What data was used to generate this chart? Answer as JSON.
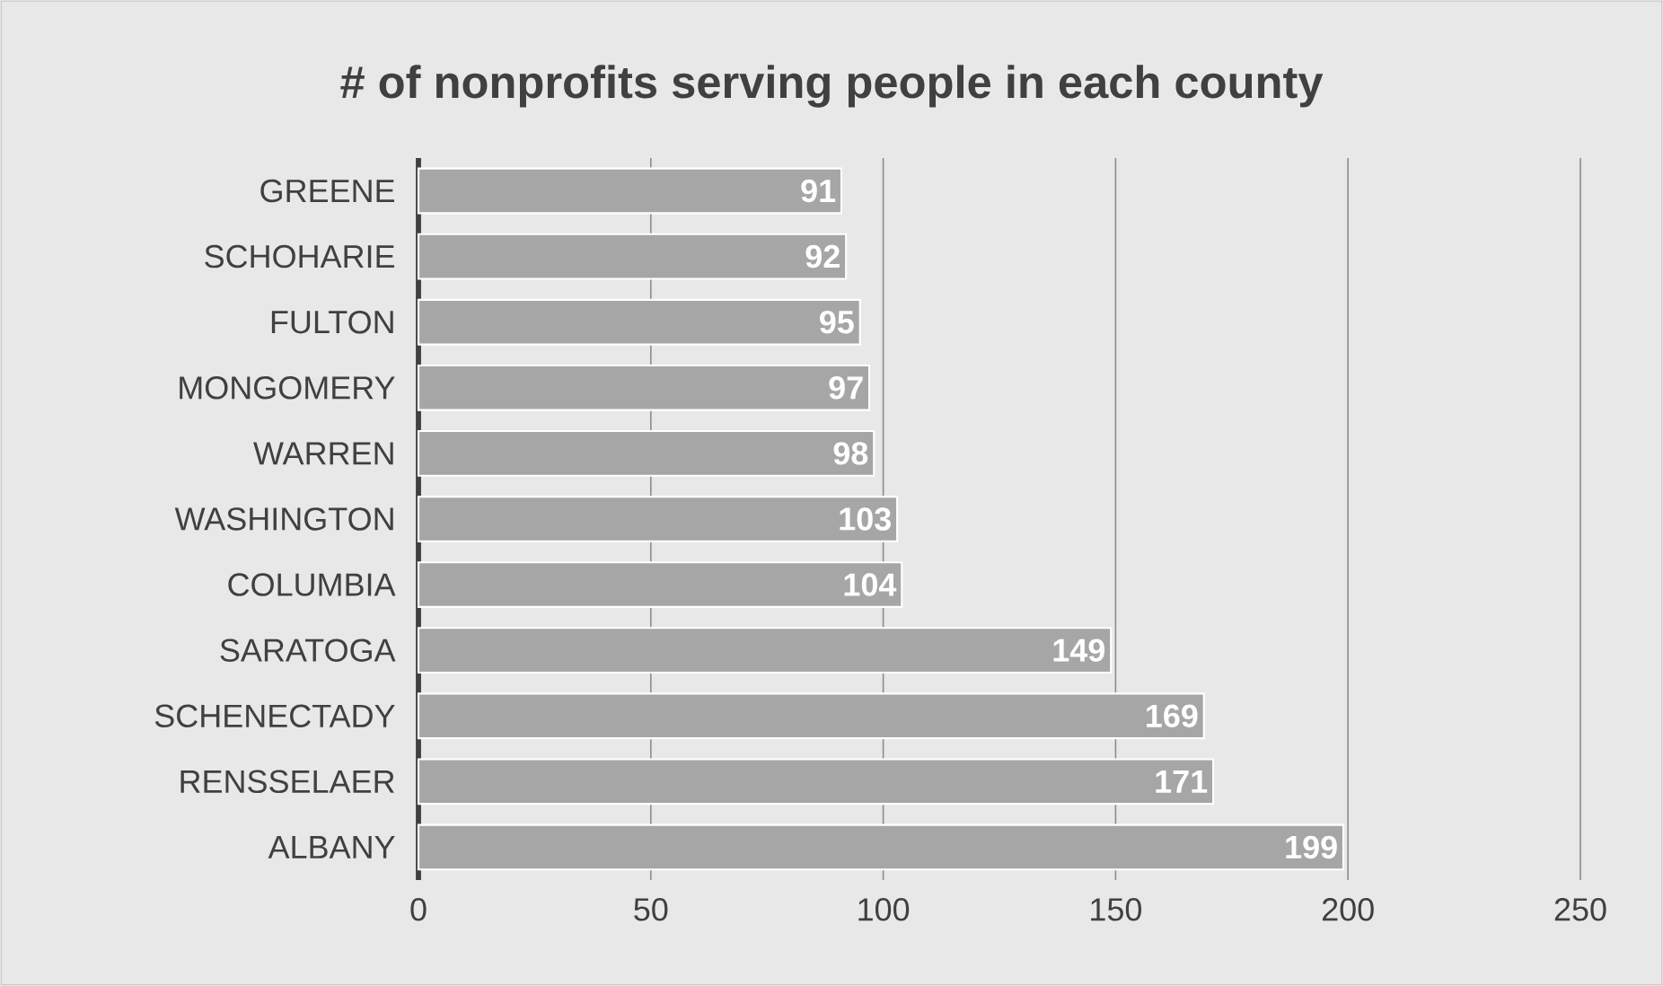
{
  "chart_data": {
    "type": "bar",
    "orientation": "horizontal",
    "title": "# of nonprofits serving people in each county",
    "categories": [
      "GREENE",
      "SCHOHARIE",
      "FULTON",
      "MONGOMERY",
      "WARREN",
      "WASHINGTON",
      "COLUMBIA",
      "SARATOGA",
      "SCHENECTADY",
      "RENSSELAER",
      "ALBANY"
    ],
    "values": [
      91,
      92,
      95,
      97,
      98,
      103,
      104,
      149,
      169,
      171,
      199
    ],
    "color": "#a6a6a6",
    "xlim": [
      0,
      250
    ],
    "xticks": [
      0,
      50,
      100,
      150,
      200,
      250
    ],
    "grid": "x",
    "data_labels": true
  }
}
